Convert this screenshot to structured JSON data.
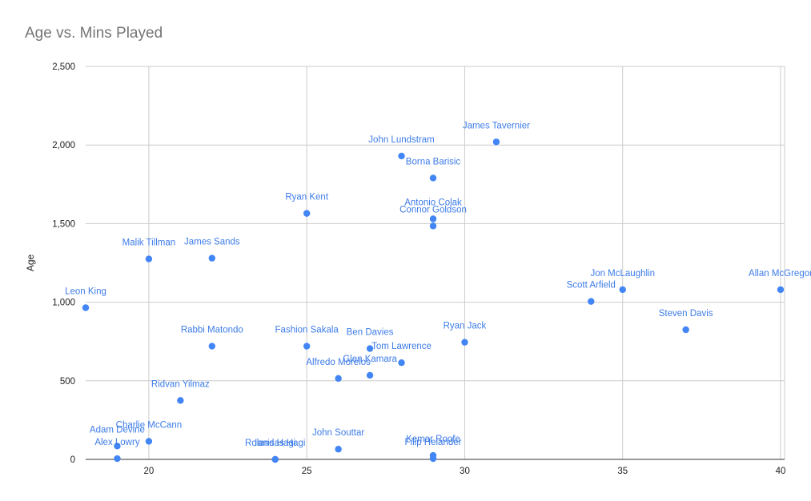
{
  "chart_data": {
    "type": "scatter",
    "title": "Age vs. Mins Played",
    "xlabel": "",
    "ylabel": "Age",
    "xlim": [
      18,
      40
    ],
    "ylim": [
      0,
      2500
    ],
    "x_ticks": [
      20,
      25,
      30,
      35,
      40
    ],
    "y_ticks": [
      0,
      500,
      1000,
      1500,
      2000,
      2500
    ],
    "y_tick_labels": [
      "0",
      "500",
      "1,000",
      "1,500",
      "2,000",
      "2,500"
    ],
    "grid": true,
    "point_color": "#4285f4",
    "points": [
      {
        "label": "James Tavernier",
        "x": 31,
        "y": 2020
      },
      {
        "label": "John Lundstram",
        "x": 28,
        "y": 1930
      },
      {
        "label": "Borna Barisic",
        "x": 29,
        "y": 1790
      },
      {
        "label": "Ryan Kent",
        "x": 25,
        "y": 1565
      },
      {
        "label": "Antonio Colak",
        "x": 29,
        "y": 1530
      },
      {
        "label": "Connor Goldson",
        "x": 29,
        "y": 1485
      },
      {
        "label": "Malik Tillman",
        "x": 20,
        "y": 1275
      },
      {
        "label": "James Sands",
        "x": 22,
        "y": 1280
      },
      {
        "label": "Leon King",
        "x": 18,
        "y": 965
      },
      {
        "label": "Jon McLaughlin",
        "x": 35,
        "y": 1080
      },
      {
        "label": "Scott Arfield",
        "x": 34,
        "y": 1005
      },
      {
        "label": "Allan McGregor",
        "x": 40,
        "y": 1080
      },
      {
        "label": "Steven Davis",
        "x": 37,
        "y": 825
      },
      {
        "label": "Rabbi Matondo",
        "x": 22,
        "y": 720
      },
      {
        "label": "Fashion Sakala",
        "x": 25,
        "y": 720
      },
      {
        "label": "Ben Davies",
        "x": 27,
        "y": 705
      },
      {
        "label": "Tom Lawrence",
        "x": 28,
        "y": 615
      },
      {
        "label": "Ryan Jack",
        "x": 30,
        "y": 745
      },
      {
        "label": "Glen Kamara",
        "x": 27,
        "y": 535
      },
      {
        "label": "Alfredo Morelos",
        "x": 26,
        "y": 515
      },
      {
        "label": "Ridvan Yilmaz",
        "x": 21,
        "y": 375
      },
      {
        "label": "Charlie McCann",
        "x": 20,
        "y": 115
      },
      {
        "label": "Adam Devine",
        "x": 19,
        "y": 85
      },
      {
        "label": "Alex Lowry",
        "x": 19,
        "y": 5
      },
      {
        "label": "Rolandas Hagi",
        "x": 24,
        "y": 0
      },
      {
        "label": "Ianis Hagi",
        "x": 24,
        "y": 0
      },
      {
        "label": "John Souttar",
        "x": 26,
        "y": 65
      },
      {
        "label": "Kemar Roofe",
        "x": 29,
        "y": 25
      },
      {
        "label": "Filip Helander",
        "x": 29,
        "y": 5
      }
    ]
  }
}
